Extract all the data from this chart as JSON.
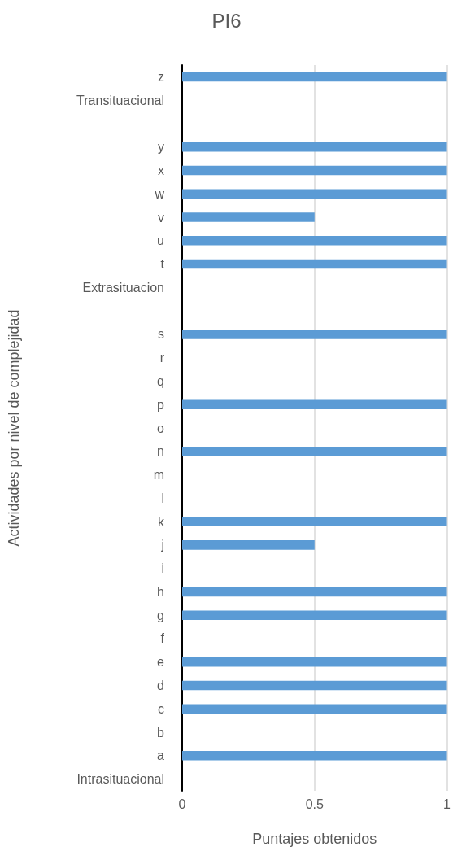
{
  "chart_data": {
    "type": "bar",
    "orientation": "horizontal",
    "title": "PI6",
    "xlabel": "Puntajes obtenidos",
    "ylabel": "Actividades por nivel de complejidad",
    "categories": [
      "z",
      "Transituacional",
      null,
      "y",
      "x",
      "w",
      "v",
      "u",
      "t",
      "Extrasituacion",
      null,
      "s",
      "r",
      "q",
      "p",
      "o",
      "n",
      "m",
      "l",
      "k",
      "j",
      "i",
      "h",
      "g",
      "f",
      "e",
      "d",
      "c",
      "b",
      "a",
      "Intrasituacional"
    ],
    "values": [
      1,
      null,
      null,
      1,
      1,
      1,
      0.5,
      1,
      1,
      null,
      null,
      1,
      0,
      0,
      1,
      0,
      1,
      0,
      0,
      1,
      0.5,
      0,
      1,
      1,
      0,
      1,
      1,
      1,
      0,
      1,
      null
    ],
    "color": "#5b9bd5",
    "xlim": [
      0,
      1
    ],
    "xticks": [
      0,
      0.5,
      1
    ],
    "grid": "x"
  }
}
